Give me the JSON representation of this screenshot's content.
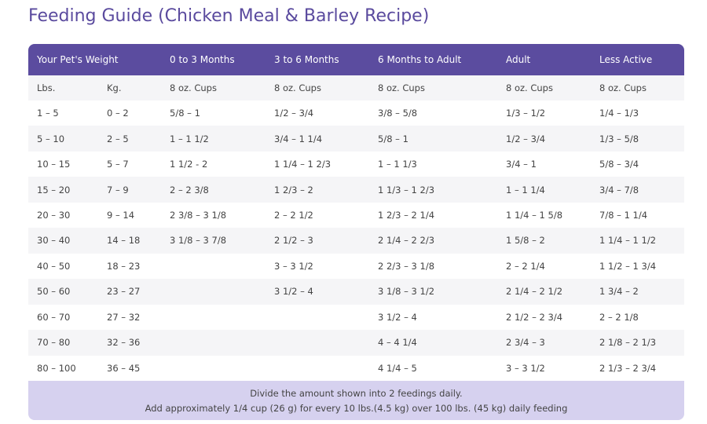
{
  "title": "Feeding Guide (Chicken Meal & Barley Recipe)",
  "table": {
    "header": [
      "Your Pet's Weight",
      "0 to 3 Months",
      "3 to 6 Months",
      "6 Months to Adult",
      "Adult",
      "Less Active"
    ],
    "subheader": [
      "Lbs.",
      "Kg.",
      "8 oz. Cups",
      "8 oz. Cups",
      "8 oz. Cups",
      "8 oz. Cups",
      "8 oz. Cups"
    ],
    "rows": [
      [
        "1 – 5",
        "0 – 2",
        "5/8 – 1",
        "1/2 – 3/4",
        "3/8 – 5/8",
        "1/3 – 1/2",
        "1/4 – 1/3"
      ],
      [
        "5 – 10",
        "2 – 5",
        "1 – 1 1/2",
        "3/4 – 1 1/4",
        "5/8 – 1",
        "1/2 – 3/4",
        "1/3 – 5/8"
      ],
      [
        "10 – 15",
        "5 – 7",
        "1 1/2 - 2",
        "1 1/4 – 1 2/3",
        "1 – 1 1/3",
        "3/4 – 1",
        "5/8 – 3/4"
      ],
      [
        "15 – 20",
        "7 – 9",
        "2 – 2 3/8",
        "1 2/3 – 2",
        "1 1/3 – 1 2/3",
        "1 – 1 1/4",
        "3/4 – 7/8"
      ],
      [
        "20 – 30",
        "9 – 14",
        "2 3/8 – 3 1/8",
        "2 – 2 1/2",
        "1 2/3 – 2 1/4",
        "1 1/4 – 1 5/8",
        "7/8 – 1 1/4"
      ],
      [
        "30 – 40",
        "14 – 18",
        "3 1/8 – 3 7/8",
        "2 1/2 – 3",
        "2 1/4 – 2 2/3",
        "1 5/8 – 2",
        "1 1/4 – 1 1/2"
      ],
      [
        "40 – 50",
        "18 – 23",
        null,
        "3 – 3 1/2",
        "2 2/3 – 3 1/8",
        "2 – 2 1/4",
        "1 1/2 – 1 3/4"
      ],
      [
        "50 – 60",
        "23 – 27",
        null,
        "3 1/2 – 4",
        "3 1/8 – 3 1/2",
        "2 1/4 – 2 1/2",
        "1 3/4 – 2"
      ],
      [
        "60 – 70",
        "27 – 32",
        null,
        null,
        "3 1/2 – 4",
        "2 1/2 – 2 3/4",
        "2 – 2 1/8"
      ],
      [
        "70 – 80",
        "32 – 36",
        null,
        null,
        "4 – 4 1/4",
        "2 3/4 – 3",
        "2 1/8 – 2 1/3"
      ],
      [
        "80 – 100",
        "36 – 45",
        null,
        null,
        "4 1/4 – 5",
        "3 – 3 1/2",
        "2 1/3 – 2 3/4"
      ]
    ],
    "footer": [
      "Divide the amount shown into 2 feedings daily.",
      "Add approximately 1/4 cup (26 g) for every 10 lbs.(4.5 kg) over 100 lbs. (45 kg) daily feeding"
    ]
  }
}
